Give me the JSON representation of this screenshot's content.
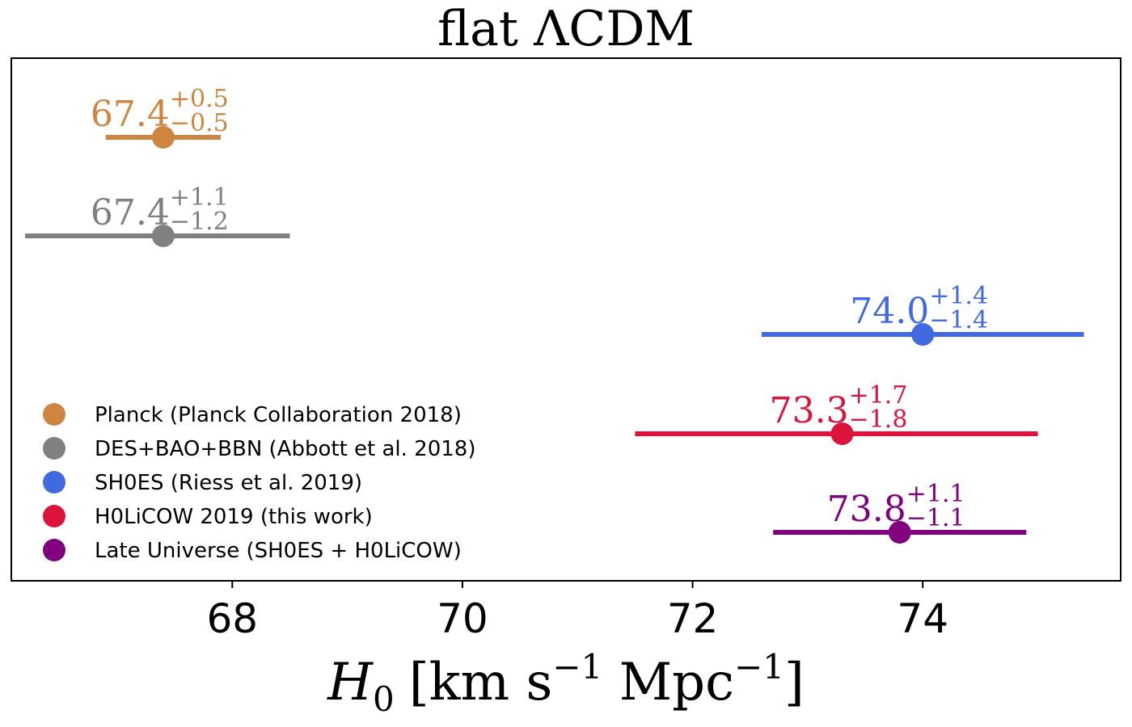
{
  "chart_data": {
    "type": "errorbar",
    "title": "flat ΛCDM",
    "xlabel": {
      "symbol": "H",
      "subscript": "0",
      "units_open": "[km s",
      "exp1": "−1",
      "units_mid": " Mpc",
      "exp2": "−1",
      "units_close": "]"
    },
    "xlim": [
      66.08,
      75.72
    ],
    "xticks": [
      {
        "value": 68,
        "label": "68"
      },
      {
        "value": 70,
        "label": "70"
      },
      {
        "value": 72,
        "label": "72"
      },
      {
        "value": 74,
        "label": "74"
      }
    ],
    "series": [
      {
        "name": "Planck (Planck Collaboration 2018)",
        "value": 67.4,
        "value_label": "67.4",
        "plus": 0.5,
        "minus": 0.5,
        "plus_label": "+0.5",
        "minus_label": "−0.5",
        "color": "#CD853F"
      },
      {
        "name": "DES+BAO+BBN (Abbott et al. 2018)",
        "value": 67.4,
        "value_label": "67.4",
        "plus": 1.1,
        "minus": 1.2,
        "plus_label": "+1.1",
        "minus_label": "−1.2",
        "color": "#808080"
      },
      {
        "name": "SH0ES (Riess et al. 2019)",
        "value": 74.0,
        "value_label": "74.0",
        "plus": 1.4,
        "minus": 1.4,
        "plus_label": "+1.4",
        "minus_label": "−1.4",
        "color": "#4169E1"
      },
      {
        "name": "H0LiCOW 2019 (this work)",
        "value": 73.3,
        "value_label": "73.3",
        "plus": 1.7,
        "minus": 1.8,
        "plus_label": "+1.7",
        "minus_label": "−1.8",
        "color": "#DC143C"
      },
      {
        "name": "Late Universe (SH0ES + H0LiCOW)",
        "value": 73.8,
        "value_label": "73.8",
        "plus": 1.1,
        "minus": 1.1,
        "plus_label": "+1.1",
        "minus_label": "−1.1",
        "color": "#800080"
      }
    ],
    "legend_position": "lower-left"
  }
}
